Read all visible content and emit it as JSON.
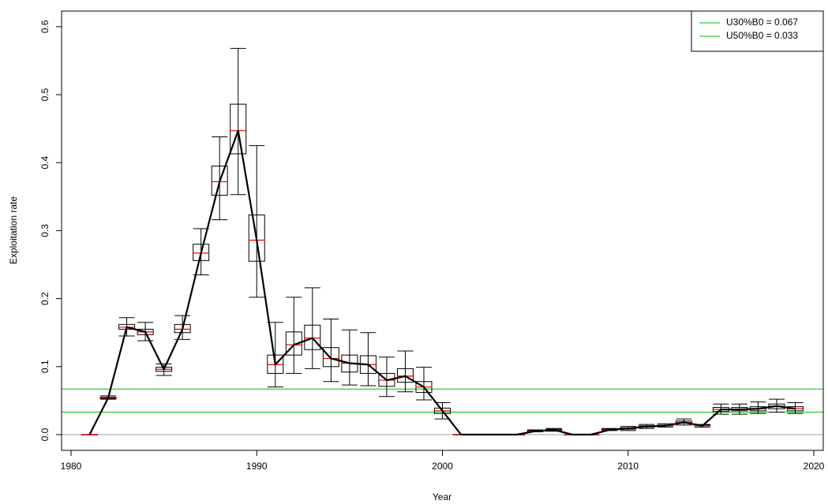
{
  "chart_data": {
    "type": "boxplot",
    "x_label": "Year",
    "y_label": "Exploitation rate",
    "x": [
      1981,
      1982,
      1983,
      1984,
      1985,
      1986,
      1987,
      1988,
      1989,
      1990,
      1991,
      1992,
      1993,
      1994,
      1995,
      1996,
      1997,
      1998,
      1999,
      2000,
      2001,
      2002,
      2003,
      2004,
      2005,
      2006,
      2007,
      2008,
      2009,
      2010,
      2011,
      2012,
      2013,
      2014,
      2015,
      2016,
      2017,
      2018,
      2019
    ],
    "low": [
      0,
      0.052,
      0.145,
      0.138,
      0.087,
      0.14,
      0.235,
      0.316,
      0.353,
      0.202,
      0.07,
      0.09,
      0.097,
      0.078,
      0.073,
      0.072,
      0.056,
      0.063,
      0.051,
      0.023,
      0,
      0,
      0,
      0,
      0.004,
      0.005,
      0,
      0,
      0.006,
      0.006,
      0.009,
      0.011,
      0.014,
      0.011,
      0.03,
      0.03,
      0.031,
      0.033,
      0.031
    ],
    "q1": [
      0,
      0.053,
      0.155,
      0.147,
      0.093,
      0.15,
      0.256,
      0.352,
      0.413,
      0.255,
      0.09,
      0.117,
      0.125,
      0.1,
      0.092,
      0.09,
      0.071,
      0.077,
      0.062,
      0.031,
      0,
      0,
      0,
      0,
      0.005,
      0.006,
      0,
      0,
      0.007,
      0.008,
      0.011,
      0.013,
      0.017,
      0.013,
      0.034,
      0.035,
      0.035,
      0.038,
      0.035
    ],
    "median": [
      0,
      0.054,
      0.158,
      0.151,
      0.096,
      0.155,
      0.267,
      0.372,
      0.447,
      0.286,
      0.103,
      0.132,
      0.142,
      0.112,
      0.105,
      0.103,
      0.08,
      0.086,
      0.07,
      0.035,
      0,
      0,
      0,
      0,
      0.005,
      0.007,
      0,
      0,
      0.007,
      0.009,
      0.012,
      0.013,
      0.018,
      0.013,
      0.037,
      0.037,
      0.038,
      0.042,
      0.038
    ],
    "q3": [
      0,
      0.055,
      0.162,
      0.155,
      0.099,
      0.162,
      0.28,
      0.395,
      0.486,
      0.323,
      0.117,
      0.151,
      0.161,
      0.128,
      0.117,
      0.116,
      0.09,
      0.097,
      0.078,
      0.039,
      0,
      0,
      0,
      0,
      0.006,
      0.008,
      0,
      0,
      0.008,
      0.01,
      0.013,
      0.014,
      0.02,
      0.014,
      0.04,
      0.04,
      0.041,
      0.045,
      0.041
    ],
    "high": [
      0,
      0.057,
      0.172,
      0.165,
      0.104,
      0.175,
      0.303,
      0.438,
      0.568,
      0.425,
      0.165,
      0.202,
      0.216,
      0.17,
      0.154,
      0.15,
      0.114,
      0.123,
      0.099,
      0.047,
      0,
      0,
      0,
      0,
      0.007,
      0.009,
      0,
      0,
      0.009,
      0.012,
      0.015,
      0.016,
      0.023,
      0.015,
      0.045,
      0.045,
      0.048,
      0.052,
      0.047
    ],
    "box_color": "#000000",
    "median_color": "#ff0000",
    "line_color": "#000000",
    "zero_line_color": "#bebebe",
    "hlines": [
      {
        "name": "U30%B0 = 0.067",
        "value": 0.067,
        "color": "#00c000"
      },
      {
        "name": "U50%B0 = 0.033",
        "value": 0.033,
        "color": "#00c000"
      }
    ],
    "legend": "topright",
    "xlim": [
      1979.49,
      2020.51
    ],
    "ylim": [
      -0.0232,
      0.623
    ],
    "xticks": [
      1980,
      1990,
      2000,
      2010,
      2020
    ],
    "yticks": [
      {
        "value": 0,
        "label": "0.0"
      },
      0.1,
      0.2,
      0.3,
      0.4,
      0.5,
      0.6
    ]
  }
}
